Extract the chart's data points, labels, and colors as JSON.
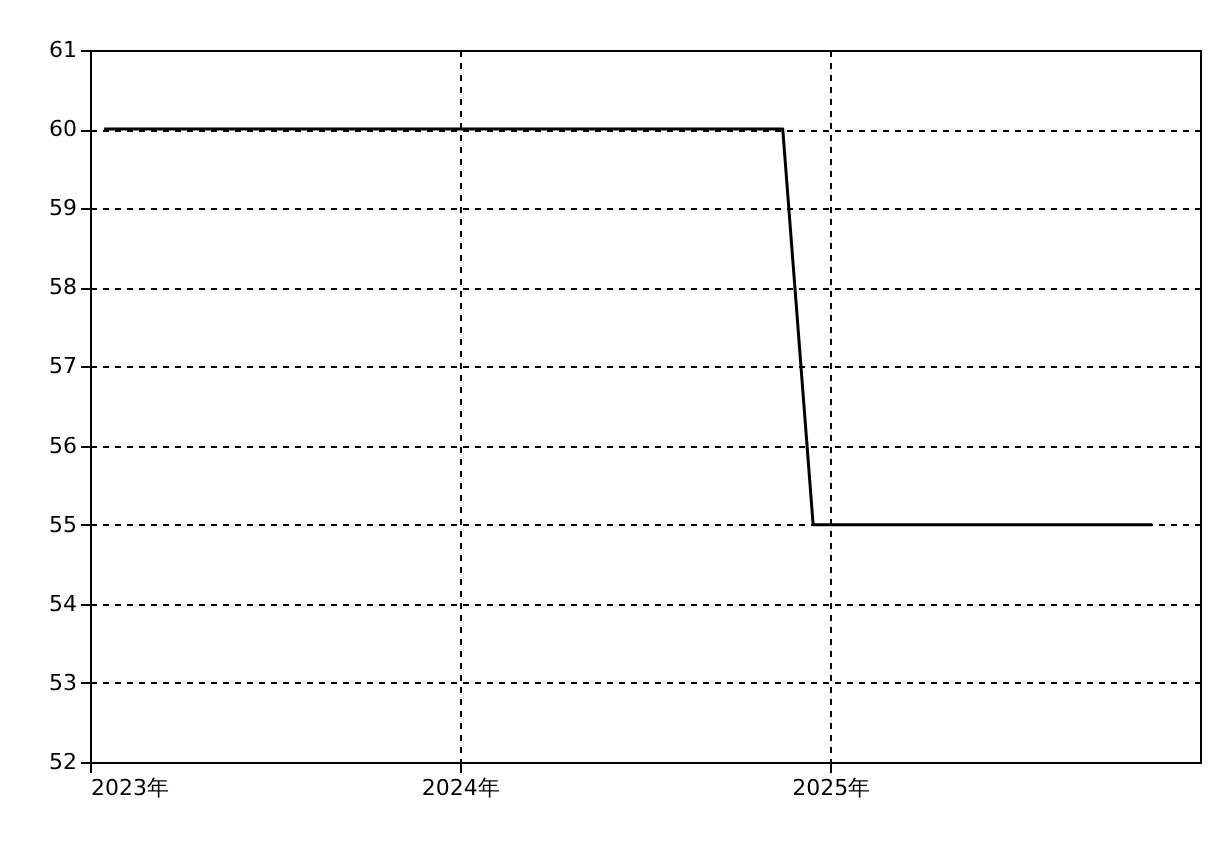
{
  "chart_data": {
    "type": "line",
    "x": [
      "2023-01-15",
      "2024-11-15",
      "2024-12-15",
      "2025-11-15"
    ],
    "series": [
      {
        "color": "#000000",
        "values": [
          60,
          60,
          55,
          55
        ]
      }
    ],
    "xlim": [
      "2023",
      "2026"
    ],
    "xticks": [
      {
        "value": "2023",
        "label": "2023年"
      },
      {
        "value": "2024",
        "label": "2024年"
      },
      {
        "value": "2025",
        "label": "2025年"
      }
    ],
    "ylim": [
      52,
      61
    ],
    "yticks": [
      52,
      53,
      54,
      55,
      56,
      57,
      58,
      59,
      60,
      61
    ],
    "grid": true,
    "marker": "none",
    "line_style": "solid"
  }
}
